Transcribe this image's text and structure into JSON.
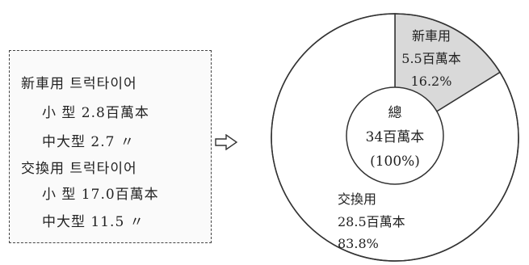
{
  "legend": {
    "rows": [
      {
        "text": "新車用 트럭타이어"
      },
      {
        "text": "小 型 2.8百萬本"
      },
      {
        "text": "中大型 2.7 〃"
      },
      {
        "text": "交換用 트럭타이어"
      },
      {
        "text": "小 型 17.0百萬本"
      },
      {
        "text": "中大型 11.5 〃"
      }
    ]
  },
  "arrow_icon": "right-arrow-icon",
  "chart_data": {
    "type": "pie",
    "center": {
      "line1": "總",
      "line2": "34百萬本",
      "line3": "(100%)"
    },
    "slices": [
      {
        "label": "新車用",
        "value_text": "5.5百萬本",
        "percent_text": "16.2%",
        "value": 5.5,
        "percent": 16.2,
        "fill": "#d9d9d9"
      },
      {
        "label": "交換用",
        "value_text": "28.5百萬本",
        "percent_text": "83.8%",
        "value": 28.5,
        "percent": 83.8,
        "fill": "#ffffff"
      }
    ]
  }
}
